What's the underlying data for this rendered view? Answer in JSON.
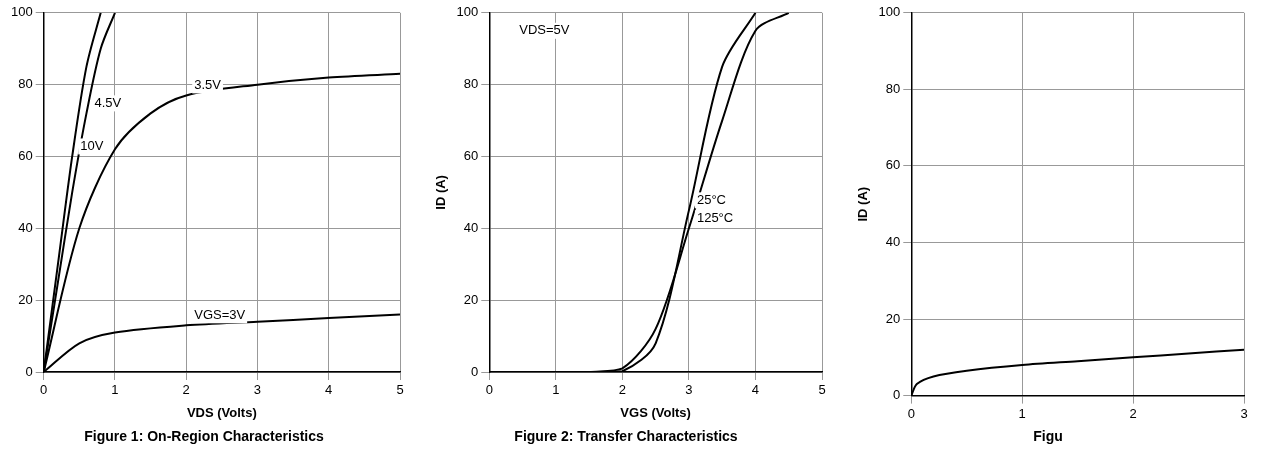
{
  "chart_data": [
    {
      "type": "line",
      "title": "Figure 1: On-Region Characteristics",
      "x_label": "VDS (Volts)",
      "xlim": [
        0,
        5
      ],
      "xticks": [
        0,
        1,
        2,
        3,
        4,
        5
      ],
      "ylim": [
        0,
        100
      ],
      "yticks": [
        0,
        20,
        40,
        60,
        80,
        100
      ],
      "grid": true,
      "series": [
        {
          "name": "10V",
          "color": "#000000",
          "x": [
            0,
            0.2,
            0.4,
            0.6,
            0.8
          ],
          "values": [
            0,
            30,
            60,
            85,
            100
          ]
        },
        {
          "name": "4.5V",
          "color": "#000000",
          "x": [
            0,
            0.2,
            0.4,
            0.6,
            0.8,
            1.0
          ],
          "values": [
            0,
            25,
            50,
            72,
            90,
            100
          ]
        },
        {
          "name": "3.5V",
          "color": "#000000",
          "x": [
            0,
            0.5,
            1,
            1.5,
            2,
            3,
            4,
            5
          ],
          "values": [
            0,
            40,
            62,
            72,
            77,
            80,
            82,
            83
          ]
        },
        {
          "name": "VGS=3V",
          "color": "#000000",
          "x": [
            0,
            0.5,
            1,
            2,
            3,
            4,
            5
          ],
          "values": [
            0,
            8,
            11,
            13,
            14,
            15,
            16
          ]
        }
      ]
    },
    {
      "type": "line",
      "title": "Figure 2: Transfer Characteristics",
      "x_label": "VGS (Volts)",
      "y_label": "ID (A)",
      "annotations": [
        "VDS=5V"
      ],
      "xlim": [
        0,
        5
      ],
      "xticks": [
        0,
        1,
        2,
        3,
        4,
        5
      ],
      "ylim": [
        0,
        100
      ],
      "yticks": [
        0,
        20,
        40,
        60,
        80,
        100
      ],
      "grid": true,
      "series": [
        {
          "name": "125°C",
          "color": "#000000",
          "x": [
            1.5,
            2,
            2.5,
            3,
            3.5,
            4,
            4.5
          ],
          "values": [
            0,
            1,
            12,
            40,
            70,
            95,
            100
          ]
        },
        {
          "name": "25°C",
          "color": "#000000",
          "x": [
            1.5,
            2,
            2.5,
            3,
            3.5,
            4
          ],
          "values": [
            0,
            0.2,
            8,
            45,
            85,
            100
          ]
        }
      ]
    },
    {
      "type": "line",
      "title": "Figu",
      "y_label": "ID (A)",
      "xlim": [
        0,
        3
      ],
      "xticks": [
        0,
        1,
        2,
        3
      ],
      "ylim": [
        0,
        100
      ],
      "yticks": [
        0,
        20,
        40,
        60,
        80,
        100
      ],
      "grid": true,
      "series": [
        {
          "color": "#000000",
          "x": [
            0,
            0.05,
            0.2,
            0.5,
            1,
            1.5,
            2,
            2.5,
            3
          ],
          "values": [
            0,
            3,
            5,
            6.5,
            8,
            9,
            10,
            11,
            12
          ]
        }
      ]
    }
  ]
}
